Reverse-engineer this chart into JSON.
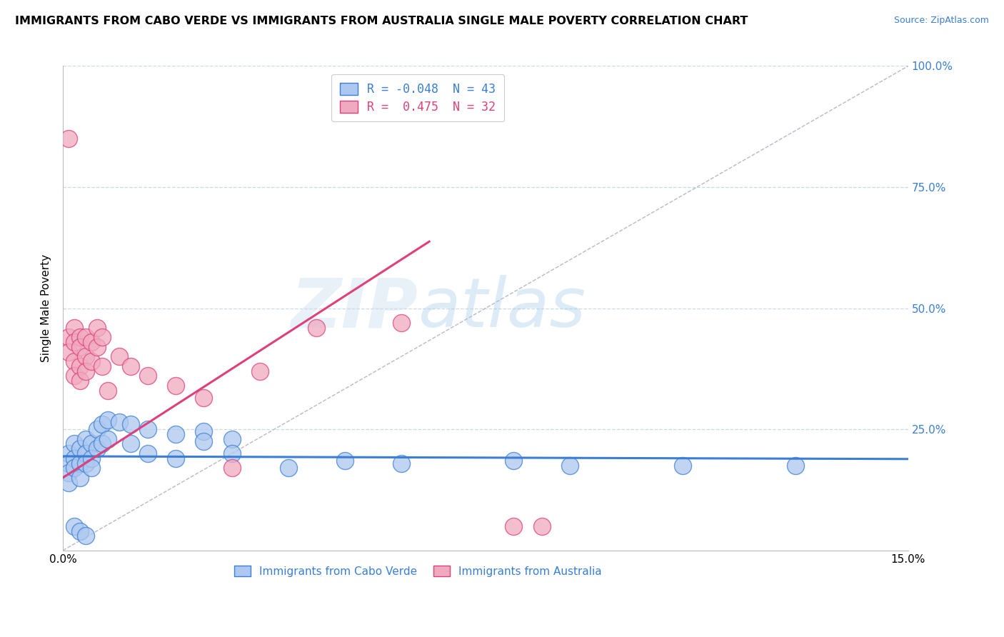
{
  "title": "IMMIGRANTS FROM CABO VERDE VS IMMIGRANTS FROM AUSTRALIA SINGLE MALE POVERTY CORRELATION CHART",
  "source": "Source: ZipAtlas.com",
  "ylabel": "Single Male Poverty",
  "legend_cabo": "R = -0.048  N = 43",
  "legend_aus": "R =  0.475  N = 32",
  "cabo_color": "#adc8f0",
  "aus_color": "#f0aac0",
  "cabo_line_color": "#3a7fd5",
  "aus_line_color": "#e0407a",
  "diag_color": "#b8b8c8",
  "cabo_verde_points": [
    [
      0.001,
      0.2
    ],
    [
      0.001,
      0.18
    ],
    [
      0.001,
      0.16
    ],
    [
      0.001,
      0.14
    ],
    [
      0.002,
      0.22
    ],
    [
      0.002,
      0.19
    ],
    [
      0.002,
      0.17
    ],
    [
      0.002,
      0.05
    ],
    [
      0.003,
      0.21
    ],
    [
      0.003,
      0.18
    ],
    [
      0.003,
      0.15
    ],
    [
      0.003,
      0.04
    ],
    [
      0.004,
      0.23
    ],
    [
      0.004,
      0.2
    ],
    [
      0.004,
      0.18
    ],
    [
      0.004,
      0.03
    ],
    [
      0.005,
      0.22
    ],
    [
      0.005,
      0.19
    ],
    [
      0.005,
      0.17
    ],
    [
      0.006,
      0.25
    ],
    [
      0.006,
      0.21
    ],
    [
      0.007,
      0.26
    ],
    [
      0.007,
      0.22
    ],
    [
      0.008,
      0.27
    ],
    [
      0.008,
      0.23
    ],
    [
      0.01,
      0.265
    ],
    [
      0.012,
      0.26
    ],
    [
      0.012,
      0.22
    ],
    [
      0.015,
      0.25
    ],
    [
      0.015,
      0.2
    ],
    [
      0.02,
      0.24
    ],
    [
      0.02,
      0.19
    ],
    [
      0.025,
      0.245
    ],
    [
      0.025,
      0.225
    ],
    [
      0.03,
      0.23
    ],
    [
      0.03,
      0.2
    ],
    [
      0.04,
      0.17
    ],
    [
      0.05,
      0.185
    ],
    [
      0.06,
      0.18
    ],
    [
      0.08,
      0.185
    ],
    [
      0.09,
      0.175
    ],
    [
      0.11,
      0.175
    ],
    [
      0.13,
      0.175
    ]
  ],
  "australia_points": [
    [
      0.001,
      0.85
    ],
    [
      0.001,
      0.44
    ],
    [
      0.001,
      0.41
    ],
    [
      0.002,
      0.46
    ],
    [
      0.002,
      0.43
    ],
    [
      0.002,
      0.39
    ],
    [
      0.002,
      0.36
    ],
    [
      0.003,
      0.44
    ],
    [
      0.003,
      0.42
    ],
    [
      0.003,
      0.38
    ],
    [
      0.003,
      0.35
    ],
    [
      0.004,
      0.44
    ],
    [
      0.004,
      0.4
    ],
    [
      0.004,
      0.37
    ],
    [
      0.005,
      0.43
    ],
    [
      0.005,
      0.39
    ],
    [
      0.006,
      0.46
    ],
    [
      0.006,
      0.42
    ],
    [
      0.007,
      0.44
    ],
    [
      0.007,
      0.38
    ],
    [
      0.008,
      0.33
    ],
    [
      0.01,
      0.4
    ],
    [
      0.012,
      0.38
    ],
    [
      0.015,
      0.36
    ],
    [
      0.02,
      0.34
    ],
    [
      0.025,
      0.315
    ],
    [
      0.03,
      0.17
    ],
    [
      0.035,
      0.37
    ],
    [
      0.045,
      0.46
    ],
    [
      0.06,
      0.47
    ],
    [
      0.08,
      0.05
    ],
    [
      0.085,
      0.05
    ]
  ],
  "xlim": [
    0.0,
    0.15
  ],
  "ylim": [
    0.0,
    1.0
  ],
  "y_ticks": [
    0.0,
    0.25,
    0.5,
    0.75,
    1.0
  ],
  "y_labels": [
    "",
    "25.0%",
    "50.0%",
    "75.0%",
    "100.0%"
  ],
  "x_ticks": [
    0.0,
    0.15
  ],
  "x_labels": [
    "0.0%",
    "15.0%"
  ]
}
